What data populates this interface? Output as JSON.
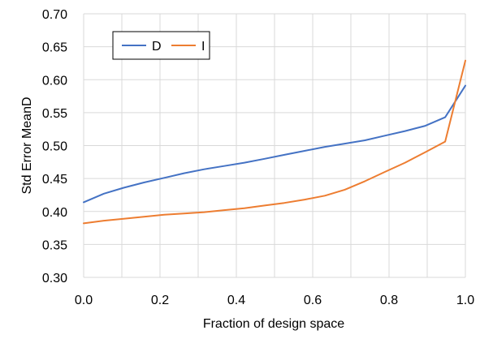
{
  "chart_data": {
    "type": "line",
    "xlabel": "Fraction of design space",
    "ylabel": "Std Error MeanD",
    "xlim": [
      0.0,
      1.0
    ],
    "ylim": [
      0.3,
      0.7
    ],
    "x_ticks": [
      "0.0",
      "0.2",
      "0.4",
      "0.6",
      "0.8",
      "1.0"
    ],
    "y_ticks": [
      "0.30",
      "0.35",
      "0.40",
      "0.45",
      "0.50",
      "0.55",
      "0.60",
      "0.65",
      "0.70"
    ],
    "grid": true,
    "legend_position": "top-left",
    "series": [
      {
        "name": "D",
        "color": "#4472c4",
        "x": [
          0.0,
          0.053,
          0.105,
          0.158,
          0.211,
          0.263,
          0.316,
          0.368,
          0.421,
          0.474,
          0.526,
          0.579,
          0.632,
          0.684,
          0.737,
          0.789,
          0.842,
          0.895,
          0.947,
          1.0
        ],
        "y": [
          0.414,
          0.427,
          0.436,
          0.444,
          0.451,
          0.458,
          0.464,
          0.469,
          0.474,
          0.48,
          0.486,
          0.492,
          0.498,
          0.503,
          0.508,
          0.515,
          0.522,
          0.53,
          0.543,
          0.591
        ]
      },
      {
        "name": "I",
        "color": "#ed7d31",
        "x": [
          0.0,
          0.053,
          0.105,
          0.158,
          0.211,
          0.263,
          0.316,
          0.368,
          0.421,
          0.474,
          0.526,
          0.579,
          0.632,
          0.684,
          0.737,
          0.789,
          0.842,
          0.895,
          0.947,
          1.0
        ],
        "y": [
          0.382,
          0.386,
          0.389,
          0.392,
          0.395,
          0.397,
          0.399,
          0.402,
          0.405,
          0.409,
          0.413,
          0.418,
          0.424,
          0.433,
          0.446,
          0.46,
          0.474,
          0.49,
          0.506,
          0.629
        ]
      }
    ]
  }
}
